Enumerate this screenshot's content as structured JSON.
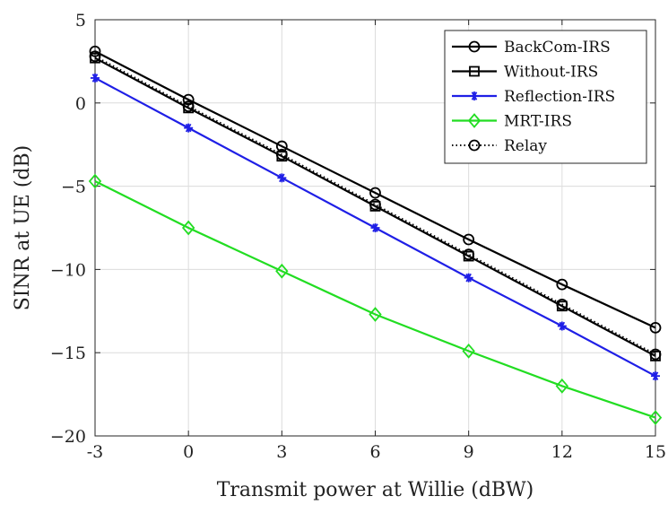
{
  "chart_data": {
    "type": "line",
    "xlabel": "Transmit power at Willie (dBW)",
    "ylabel": "SINR at UE (dB)",
    "x": [
      -3,
      0,
      3,
      6,
      9,
      12,
      15
    ],
    "xticks": [
      "-3",
      "0",
      "3",
      "6",
      "9",
      "12",
      "15"
    ],
    "yticks": [
      "5",
      "0",
      "−5",
      "−10",
      "−15",
      "−20"
    ],
    "xlim": [
      -3,
      15
    ],
    "ylim": [
      -20,
      5
    ],
    "grid": true,
    "legend_position": "top-right",
    "series": [
      {
        "name": "BackCom-IRS",
        "color": "#000000",
        "marker": "circle",
        "dash": "solid",
        "values": [
          3.1,
          0.2,
          -2.6,
          -5.4,
          -8.2,
          -10.9,
          -13.5
        ]
      },
      {
        "name": "Without-IRS",
        "color": "#000000",
        "marker": "square",
        "dash": "solid",
        "values": [
          2.7,
          -0.3,
          -3.2,
          -6.2,
          -9.2,
          -12.2,
          -15.2
        ]
      },
      {
        "name": "Reflection-IRS",
        "color": "#1f1fe6",
        "marker": "asterisk",
        "dash": "solid",
        "values": [
          1.5,
          -1.5,
          -4.5,
          -7.5,
          -10.5,
          -13.4,
          -16.4
        ]
      },
      {
        "name": "MRT-IRS",
        "color": "#22dd22",
        "marker": "diamond",
        "dash": "solid",
        "values": [
          -4.7,
          -7.5,
          -10.1,
          -12.7,
          -14.9,
          -17.0,
          -18.9
        ]
      },
      {
        "name": "Relay",
        "color": "#000000",
        "marker": "circle",
        "dash": "dotted",
        "values": [
          2.8,
          -0.2,
          -3.1,
          -6.1,
          -9.1,
          -12.1,
          -15.1
        ]
      }
    ]
  }
}
